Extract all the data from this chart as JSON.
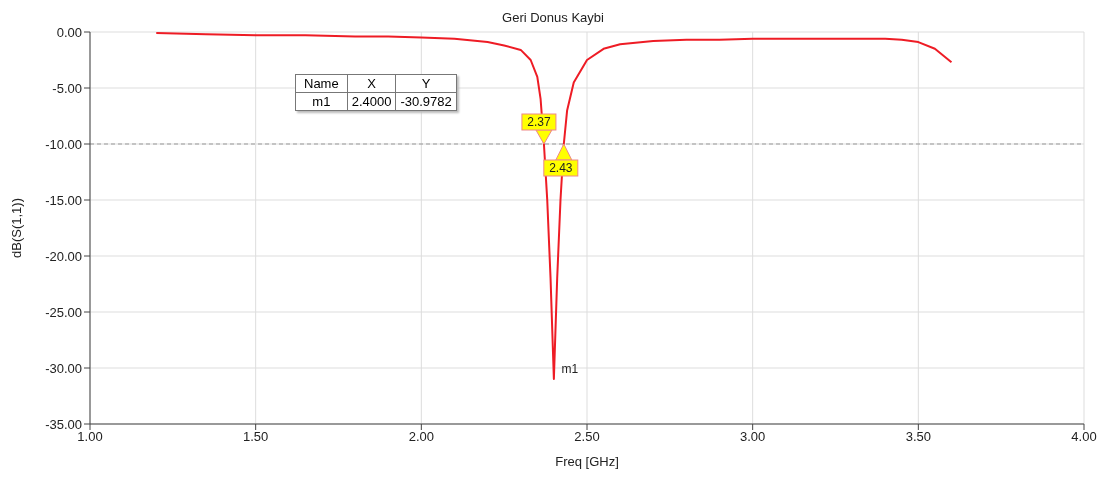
{
  "chart_data": {
    "type": "line",
    "title": "Geri Donus Kaybi",
    "xlabel": "Freq [GHz]",
    "ylabel": "dB(S(1,1))",
    "x": [
      1.2,
      1.35,
      1.5,
      1.65,
      1.8,
      1.9,
      2.0,
      2.1,
      2.2,
      2.25,
      2.3,
      2.33,
      2.35,
      2.36,
      2.37,
      2.38,
      2.39,
      2.4,
      2.41,
      2.42,
      2.43,
      2.44,
      2.46,
      2.5,
      2.55,
      2.6,
      2.7,
      2.8,
      2.9,
      3.0,
      3.1,
      3.2,
      3.3,
      3.4,
      3.45,
      3.5,
      3.55,
      3.6
    ],
    "series": [
      {
        "color": "#ee1c25",
        "values": [
          -0.1,
          -0.2,
          -0.3,
          -0.3,
          -0.4,
          -0.4,
          -0.5,
          -0.6,
          -0.9,
          -1.2,
          -1.6,
          -2.5,
          -4,
          -6,
          -10,
          -15,
          -22,
          -30.9782,
          -22,
          -15,
          -10,
          -7,
          -4.5,
          -2.5,
          -1.5,
          -1.1,
          -0.8,
          -0.7,
          -0.7,
          -0.6,
          -0.6,
          -0.6,
          -0.6,
          -0.6,
          -0.7,
          -0.9,
          -1.5,
          -2.7
        ]
      }
    ],
    "xlim": [
      1,
      4
    ],
    "ylim": [
      -35,
      0
    ],
    "xticks": [
      {
        "value": 1,
        "label": "1.00"
      },
      {
        "value": 1.5,
        "label": "1.50"
      },
      {
        "value": 2,
        "label": "2.00"
      },
      {
        "value": 2.5,
        "label": "2.50"
      },
      {
        "value": 3,
        "label": "3.00"
      },
      {
        "value": 3.5,
        "label": "3.50"
      },
      {
        "value": 4,
        "label": "4.00"
      }
    ],
    "yticks": [
      {
        "value": -35,
        "label": "-35.00"
      },
      {
        "value": -30,
        "label": "-30.00"
      },
      {
        "value": -25,
        "label": "-25.00"
      },
      {
        "value": -20,
        "label": "-20.00"
      },
      {
        "value": -15,
        "label": "-15.00"
      },
      {
        "value": -10,
        "label": "-10.00"
      },
      {
        "value": -5,
        "label": "-5.00"
      },
      {
        "value": 0,
        "label": "0.00"
      }
    ],
    "grid": true,
    "marker": "none",
    "line_style": "solid",
    "ref_lines": [
      {
        "axis": "y",
        "value": -10,
        "color": "#999999",
        "line_style": "dashed"
      }
    ],
    "annotations": [
      "Name",
      "X",
      "Y",
      "m1",
      "2.4000",
      "-30.9782",
      {
        "text": "m1",
        "x": 2.4,
        "y": -30.9782
      },
      {
        "text": "2.37",
        "x": 2.37,
        "y": -10
      },
      {
        "text": "2.43",
        "x": 2.43,
        "y": -10
      }
    ]
  }
}
